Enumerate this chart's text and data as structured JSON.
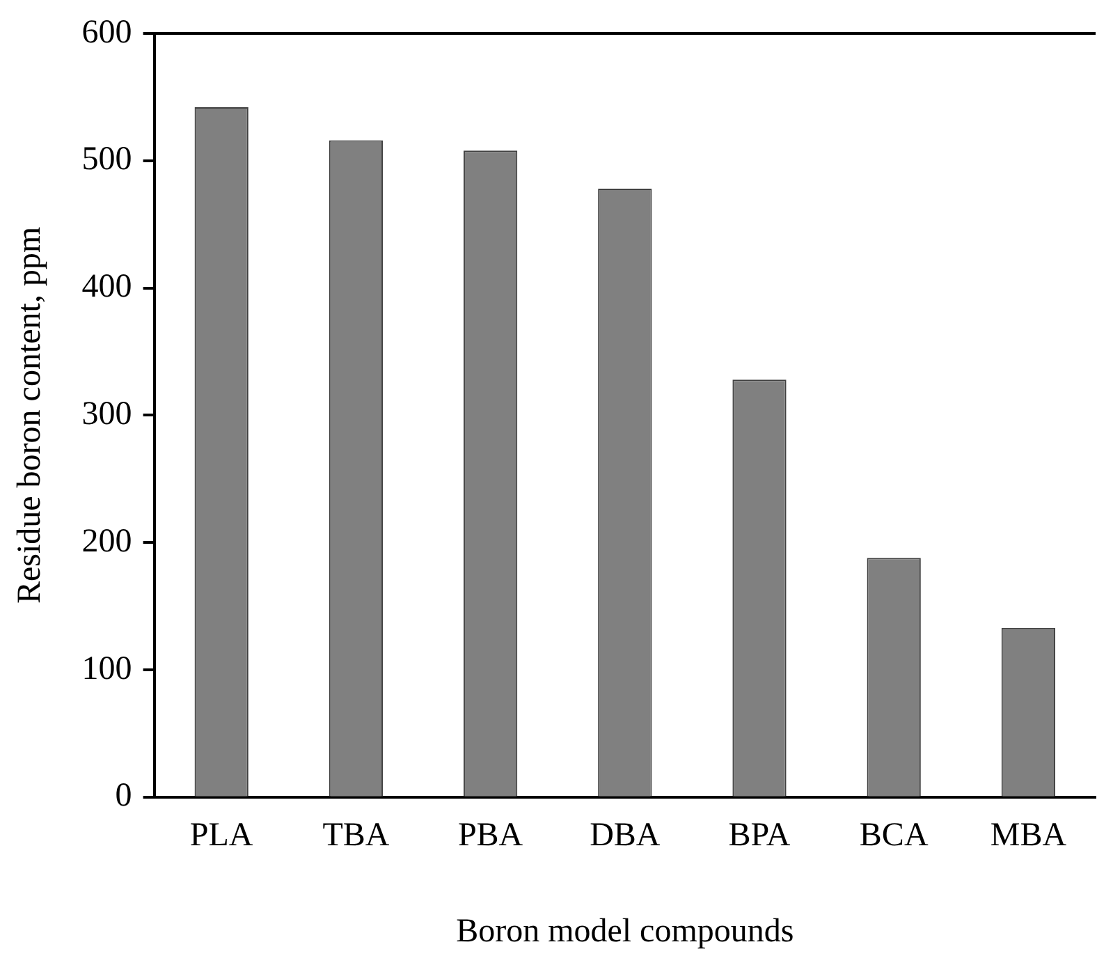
{
  "chart_data": {
    "type": "bar",
    "xlabel": "Boron model compounds",
    "ylabel": "Residue boron content, ppm",
    "categories": [
      "PLA",
      "TBA",
      "PBA",
      "DBA",
      "BPA",
      "BCA",
      "MBA"
    ],
    "values": [
      542,
      516,
      508,
      478,
      328,
      188,
      133
    ],
    "color": "#808080",
    "ylim": [
      0,
      600
    ],
    "yticks": [
      0,
      100,
      200,
      300,
      400,
      500,
      600
    ],
    "grid": false,
    "legend": false
  }
}
